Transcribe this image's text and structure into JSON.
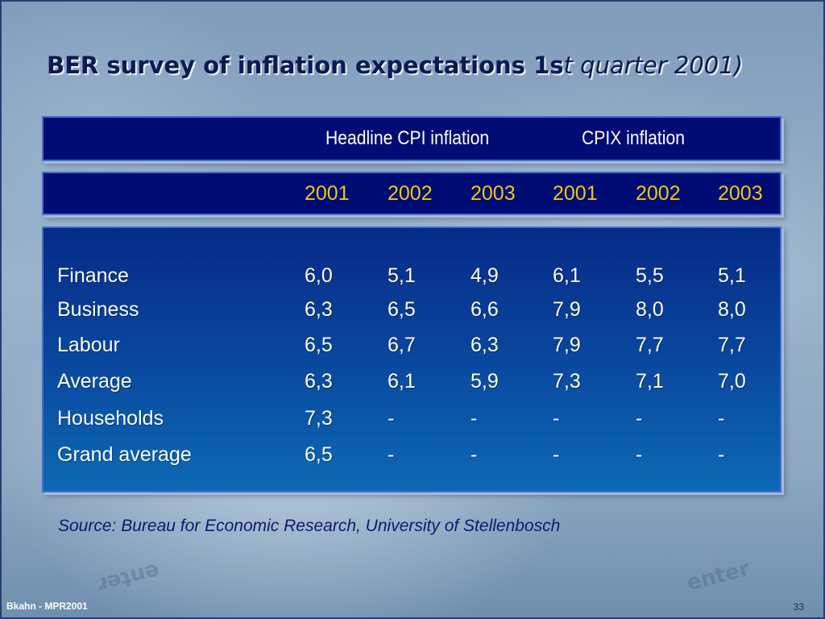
{
  "slide": {
    "title_main": "BER survey of inflation expectations 1s",
    "title_italic": "t quarter 2001)",
    "source": "Source: Bureau for Economic Research, University of Stellenbosch",
    "footer_left": "Bkahn - MPR2001",
    "page_number": "33"
  },
  "table": {
    "group_headers": [
      "Headline CPI inflation",
      "CPIX inflation"
    ],
    "years": [
      "2001",
      "2002",
      "2003",
      "2001",
      "2002",
      "2003"
    ],
    "rows": [
      {
        "label": "Finance",
        "values": [
          "6,0",
          "5,1",
          "4,9",
          "6,1",
          "5,5",
          "5,1"
        ]
      },
      {
        "label": "Business",
        "values": [
          "6,3",
          "6,5",
          "6,6",
          "7,9",
          "8,0",
          "8,0"
        ]
      },
      {
        "label": "Labour",
        "values": [
          "6,5",
          "6,7",
          "6,3",
          "7,9",
          "7,7",
          "7,7"
        ]
      },
      {
        "label": "Average",
        "values": [
          "6,3",
          "6,1",
          "5,9",
          "7,3",
          "7,1",
          "7,0"
        ]
      },
      {
        "label": "Households",
        "values": [
          "7,3",
          "-",
          "-",
          "-",
          "-",
          "-"
        ]
      },
      {
        "label": "Grand average",
        "values": [
          "6,5",
          "-",
          "-",
          "-",
          "-",
          "-"
        ]
      }
    ]
  },
  "colors": {
    "panel": "#000c73",
    "year_text": "#f2c418",
    "title_text": "#0b1a55"
  }
}
